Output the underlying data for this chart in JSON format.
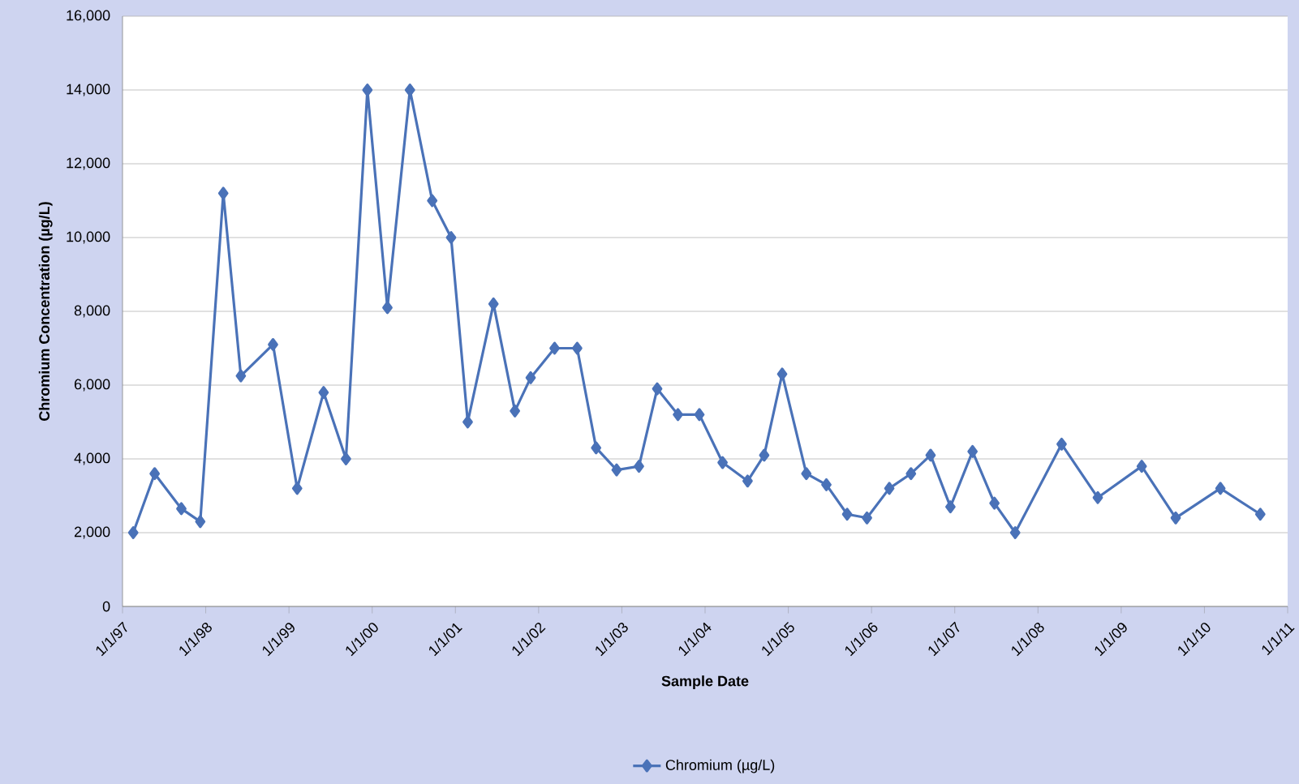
{
  "chart_data": {
    "type": "line",
    "xlabel": "Sample Date",
    "ylabel": "Chromium Concentration (µg/L)",
    "x": [
      "1997-02-17",
      "1997-05-22",
      "1997-09-16",
      "1997-12-08",
      "1998-03-19",
      "1998-06-04",
      "1998-10-23",
      "1999-02-06",
      "1999-06-02",
      "1999-09-08",
      "1999-12-11",
      "2000-03-08",
      "2000-06-15",
      "2000-09-21",
      "2000-12-13",
      "2001-02-24",
      "2001-06-17",
      "2001-09-19",
      "2001-11-27",
      "2002-03-12",
      "2002-06-19",
      "2002-09-10",
      "2002-12-09",
      "2003-03-17",
      "2003-06-05",
      "2003-09-04",
      "2003-12-07",
      "2004-03-18",
      "2004-07-06",
      "2004-09-17",
      "2004-12-05",
      "2005-03-21",
      "2005-06-17",
      "2005-09-16",
      "2005-12-12",
      "2006-03-20",
      "2006-06-23",
      "2006-09-17",
      "2006-12-13",
      "2007-03-20",
      "2007-06-24",
      "2007-09-23",
      "2008-04-14",
      "2008-09-20",
      "2009-04-01",
      "2009-08-28",
      "2010-03-12",
      "2010-09-03"
    ],
    "series": [
      {
        "name": "Chromium (µg/L)",
        "color": "#4a72b8",
        "values": [
          2000,
          3600,
          2650,
          2300,
          11200,
          6250,
          7100,
          3200,
          5800,
          4000,
          14000,
          8100,
          14000,
          11000,
          10000,
          5000,
          8200,
          5300,
          6200,
          7000,
          7000,
          4300,
          3700,
          3800,
          5900,
          5200,
          5200,
          3900,
          3400,
          4100,
          6300,
          3600,
          3300,
          2500,
          2400,
          3200,
          3600,
          4100,
          2700,
          4200,
          2800,
          2000,
          4400,
          2950,
          3800,
          2400,
          3200,
          2500
        ]
      }
    ],
    "xlim": [
      "1997-01-01",
      "2011-01-01"
    ],
    "xticks": [
      {
        "value": "1997-01-01",
        "label": "1/1/97"
      },
      {
        "value": "1998-01-01",
        "label": "1/1/98"
      },
      {
        "value": "1999-01-01",
        "label": "1/1/99"
      },
      {
        "value": "2000-01-01",
        "label": "1/1/00"
      },
      {
        "value": "2001-01-01",
        "label": "1/1/01"
      },
      {
        "value": "2002-01-01",
        "label": "1/1/02"
      },
      {
        "value": "2003-01-01",
        "label": "1/1/03"
      },
      {
        "value": "2004-01-01",
        "label": "1/1/04"
      },
      {
        "value": "2005-01-01",
        "label": "1/1/05"
      },
      {
        "value": "2006-01-01",
        "label": "1/1/06"
      },
      {
        "value": "2007-01-01",
        "label": "1/1/07"
      },
      {
        "value": "2008-01-01",
        "label": "1/1/08"
      },
      {
        "value": "2009-01-01",
        "label": "1/1/09"
      },
      {
        "value": "2010-01-01",
        "label": "1/1/10"
      },
      {
        "value": "2011-01-01",
        "label": "1/1/11"
      }
    ],
    "ylim": [
      0,
      16000
    ],
    "yticks": [
      0,
      {
        "value": 2000,
        "label": "2,000"
      },
      {
        "value": 4000,
        "label": "4,000"
      },
      {
        "value": 6000,
        "label": "6,000"
      },
      {
        "value": 8000,
        "label": "8,000"
      },
      {
        "value": 10000,
        "label": "10,000"
      },
      {
        "value": 12000,
        "label": "12,000"
      },
      {
        "value": 14000,
        "label": "14,000"
      },
      {
        "value": 16000,
        "label": "16,000"
      }
    ],
    "grid": "y",
    "legend": "bottom",
    "marker": "diamond",
    "line_style": "solid"
  }
}
